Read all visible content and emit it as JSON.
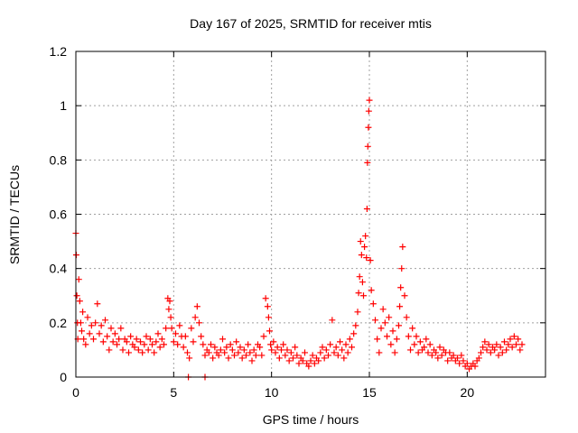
{
  "chart_data": {
    "type": "scatter",
    "title": "Day 167 of 2025, SRMTID for receiver mtis",
    "xlabel": "GPS time / hours",
    "ylabel": "SRMTID / TECUs",
    "xlim": [
      0,
      24
    ],
    "ylim": [
      0,
      1.2
    ],
    "xticks": [
      0,
      5,
      10,
      15,
      20
    ],
    "xtick_labels": [
      "0",
      "5",
      "10",
      "15",
      "20"
    ],
    "yticks": [
      0,
      0.2,
      0.4,
      0.6,
      0.8,
      1.0,
      1.2
    ],
    "ytick_labels": [
      "0",
      "0.2",
      "0.4",
      "0.6",
      "0.8",
      "1",
      "1.2"
    ],
    "grid": true,
    "marker": "+",
    "color": "#ff0000",
    "series": [
      {
        "name": "SRMTID",
        "x": [
          0.0,
          0.02,
          0.05,
          0.08,
          0.1,
          0.15,
          0.2,
          0.25,
          0.3,
          0.35,
          0.4,
          0.5,
          0.6,
          0.7,
          0.8,
          0.9,
          1.0,
          1.1,
          1.2,
          1.3,
          1.4,
          1.5,
          1.6,
          1.7,
          1.8,
          1.9,
          2.0,
          2.1,
          2.2,
          2.3,
          2.4,
          2.5,
          2.6,
          2.7,
          2.8,
          2.9,
          3.0,
          3.1,
          3.2,
          3.3,
          3.4,
          3.5,
          3.6,
          3.7,
          3.8,
          3.9,
          4.0,
          4.1,
          4.2,
          4.3,
          4.4,
          4.5,
          4.6,
          4.7,
          4.75,
          4.8,
          4.85,
          4.9,
          5.0,
          5.1,
          5.2,
          5.3,
          5.4,
          5.5,
          5.6,
          5.7,
          5.8,
          5.9,
          6.0,
          6.1,
          6.2,
          6.3,
          6.4,
          6.5,
          6.6,
          6.7,
          6.8,
          6.9,
          7.0,
          7.1,
          7.2,
          7.3,
          7.4,
          7.5,
          7.6,
          7.7,
          7.8,
          7.9,
          8.0,
          8.1,
          8.2,
          8.3,
          8.4,
          8.5,
          8.6,
          8.7,
          8.8,
          8.9,
          9.0,
          9.1,
          9.2,
          9.3,
          9.4,
          9.5,
          9.6,
          9.7,
          9.8,
          9.85,
          9.9,
          9.95,
          10.0,
          10.1,
          10.2,
          10.3,
          10.4,
          10.5,
          10.6,
          10.7,
          10.8,
          10.9,
          11.0,
          11.1,
          11.2,
          11.3,
          11.4,
          11.5,
          11.6,
          11.7,
          11.8,
          11.9,
          12.0,
          12.1,
          12.2,
          12.3,
          12.4,
          12.5,
          12.6,
          12.7,
          12.8,
          12.9,
          13.0,
          13.1,
          13.2,
          13.3,
          13.4,
          13.5,
          13.6,
          13.7,
          13.8,
          13.9,
          14.0,
          14.1,
          14.2,
          14.3,
          14.4,
          14.45,
          14.5,
          14.55,
          14.6,
          14.65,
          14.7,
          14.75,
          14.8,
          14.85,
          14.88,
          14.9,
          14.92,
          14.95,
          14.97,
          15.0,
          15.05,
          15.1,
          15.2,
          15.3,
          15.4,
          15.5,
          15.6,
          15.7,
          15.8,
          15.9,
          16.0,
          16.1,
          16.2,
          16.3,
          16.4,
          16.5,
          16.55,
          16.6,
          16.65,
          16.7,
          16.8,
          16.9,
          17.0,
          17.1,
          17.2,
          17.3,
          17.4,
          17.5,
          17.6,
          17.7,
          17.8,
          17.9,
          18.0,
          18.1,
          18.2,
          18.3,
          18.4,
          18.5,
          18.6,
          18.7,
          18.8,
          18.9,
          19.0,
          19.1,
          19.2,
          19.3,
          19.4,
          19.5,
          19.6,
          19.7,
          19.8,
          19.9,
          20.0,
          20.1,
          20.2,
          20.3,
          20.4,
          20.5,
          20.6,
          20.7,
          20.8,
          20.9,
          21.0,
          21.1,
          21.2,
          21.3,
          21.4,
          21.5,
          21.6,
          21.7,
          21.8,
          21.9,
          22.0,
          22.1,
          22.2,
          22.3,
          22.4,
          22.5,
          22.6,
          22.7,
          22.8,
          5.75,
          6.6
        ],
        "y": [
          0.53,
          0.45,
          0.3,
          0.2,
          0.14,
          0.36,
          0.28,
          0.2,
          0.17,
          0.24,
          0.14,
          0.12,
          0.22,
          0.16,
          0.19,
          0.14,
          0.2,
          0.27,
          0.16,
          0.19,
          0.13,
          0.21,
          0.15,
          0.1,
          0.18,
          0.13,
          0.16,
          0.12,
          0.14,
          0.18,
          0.1,
          0.14,
          0.13,
          0.09,
          0.15,
          0.12,
          0.11,
          0.14,
          0.1,
          0.13,
          0.09,
          0.12,
          0.15,
          0.1,
          0.14,
          0.12,
          0.09,
          0.13,
          0.16,
          0.11,
          0.14,
          0.12,
          0.18,
          0.29,
          0.25,
          0.28,
          0.22,
          0.18,
          0.13,
          0.16,
          0.12,
          0.19,
          0.15,
          0.11,
          0.15,
          0.09,
          0.07,
          0.18,
          0.13,
          0.22,
          0.26,
          0.2,
          0.15,
          0.12,
          0.08,
          0.1,
          0.09,
          0.12,
          0.07,
          0.11,
          0.09,
          0.08,
          0.1,
          0.14,
          0.09,
          0.11,
          0.07,
          0.12,
          0.1,
          0.08,
          0.13,
          0.09,
          0.11,
          0.07,
          0.1,
          0.08,
          0.12,
          0.09,
          0.06,
          0.1,
          0.08,
          0.12,
          0.11,
          0.08,
          0.15,
          0.29,
          0.26,
          0.22,
          0.17,
          0.12,
          0.1,
          0.13,
          0.09,
          0.11,
          0.07,
          0.1,
          0.12,
          0.08,
          0.1,
          0.06,
          0.09,
          0.07,
          0.11,
          0.08,
          0.05,
          0.07,
          0.06,
          0.09,
          0.05,
          0.04,
          0.06,
          0.08,
          0.05,
          0.07,
          0.06,
          0.09,
          0.11,
          0.07,
          0.1,
          0.08,
          0.12,
          0.21,
          0.09,
          0.11,
          0.08,
          0.13,
          0.1,
          0.07,
          0.12,
          0.09,
          0.14,
          0.11,
          0.16,
          0.19,
          0.24,
          0.31,
          0.37,
          0.5,
          0.45,
          0.35,
          0.3,
          0.48,
          0.52,
          0.44,
          0.62,
          0.79,
          0.85,
          0.92,
          0.98,
          1.02,
          0.43,
          0.32,
          0.27,
          0.21,
          0.14,
          0.09,
          0.18,
          0.25,
          0.2,
          0.15,
          0.22,
          0.12,
          0.17,
          0.09,
          0.14,
          0.19,
          0.26,
          0.33,
          0.4,
          0.48,
          0.3,
          0.22,
          0.15,
          0.1,
          0.18,
          0.12,
          0.15,
          0.09,
          0.13,
          0.1,
          0.11,
          0.14,
          0.09,
          0.12,
          0.08,
          0.1,
          0.09,
          0.07,
          0.11,
          0.08,
          0.1,
          0.09,
          0.06,
          0.09,
          0.07,
          0.08,
          0.06,
          0.07,
          0.05,
          0.08,
          0.06,
          0.04,
          0.05,
          0.03,
          0.04,
          0.05,
          0.04,
          0.06,
          0.07,
          0.09,
          0.11,
          0.13,
          0.1,
          0.12,
          0.09,
          0.11,
          0.1,
          0.12,
          0.08,
          0.11,
          0.09,
          0.13,
          0.1,
          0.12,
          0.14,
          0.11,
          0.15,
          0.12,
          0.14,
          0.1,
          0.12,
          0.0,
          0.0
        ]
      }
    ]
  }
}
